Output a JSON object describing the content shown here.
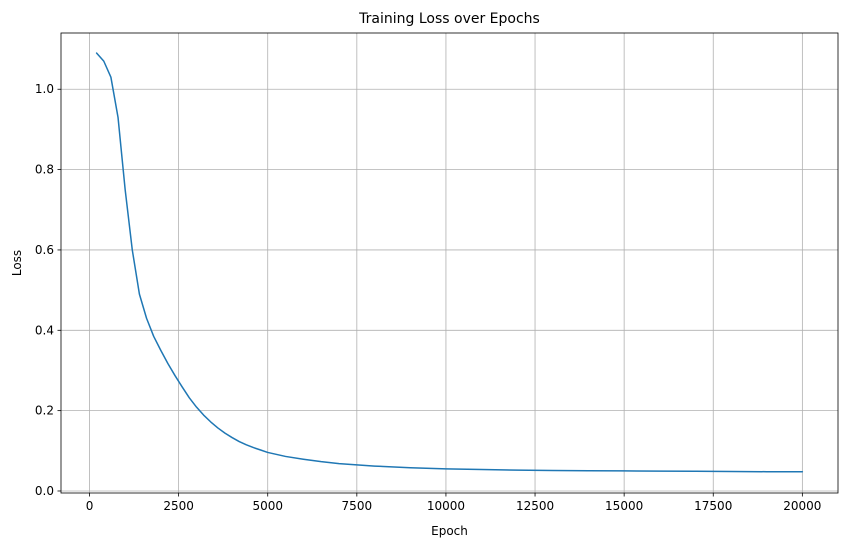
{
  "chart_data": {
    "type": "line",
    "title": "Training Loss over Epochs",
    "xlabel": "Epoch",
    "ylabel": "Loss",
    "xlim": [
      -800,
      21000
    ],
    "ylim": [
      -0.005,
      1.14
    ],
    "xticks": [
      0,
      2500,
      5000,
      7500,
      10000,
      12500,
      15000,
      17500,
      20000
    ],
    "yticks": [
      0.0,
      0.2,
      0.4,
      0.6,
      0.8,
      1.0
    ],
    "xtick_labels": [
      "0",
      "2500",
      "5000",
      "7500",
      "10000",
      "12500",
      "15000",
      "17500",
      "20000"
    ],
    "ytick_labels": [
      "0.0",
      "0.2",
      "0.4",
      "0.6",
      "0.8",
      "1.0"
    ],
    "grid": true,
    "series": [
      {
        "color": "#1f77b4",
        "x": [
          200,
          400,
          600,
          800,
          900,
          1000,
          1200,
          1400,
          1600,
          1800,
          2000,
          2200,
          2400,
          2600,
          2800,
          3000,
          3200,
          3400,
          3600,
          3800,
          4000,
          4200,
          4400,
          4600,
          4800,
          5000,
          5500,
          6000,
          6500,
          7000,
          7500,
          8000,
          9000,
          10000,
          11000,
          12000,
          13000,
          14000,
          15000,
          16000,
          17000,
          18000,
          19000,
          20000
        ],
        "y": [
          1.09,
          1.07,
          1.03,
          0.93,
          0.84,
          0.75,
          0.6,
          0.49,
          0.43,
          0.385,
          0.35,
          0.317,
          0.287,
          0.259,
          0.232,
          0.209,
          0.189,
          0.172,
          0.157,
          0.144,
          0.133,
          0.123,
          0.115,
          0.108,
          0.102,
          0.096,
          0.086,
          0.079,
          0.073,
          0.068,
          0.065,
          0.062,
          0.058,
          0.055,
          0.0535,
          0.052,
          0.051,
          0.0505,
          0.05,
          0.0495,
          0.049,
          0.0485,
          0.048,
          0.0478
        ]
      }
    ]
  }
}
